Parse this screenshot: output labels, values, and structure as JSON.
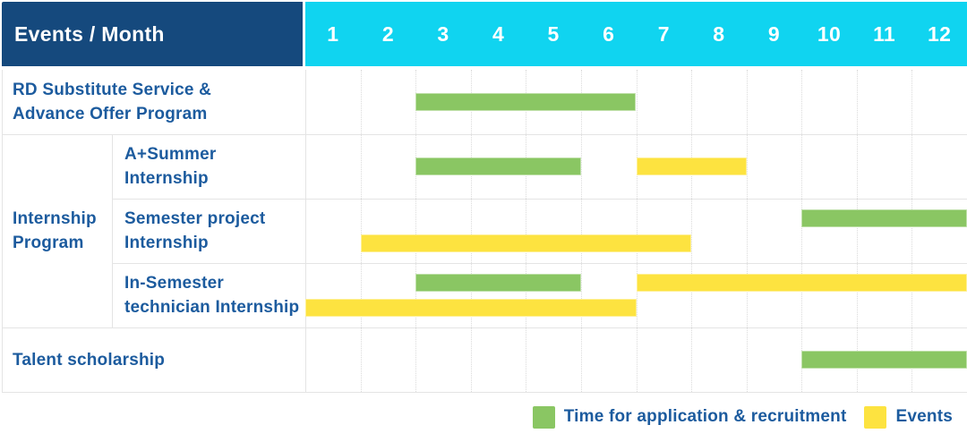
{
  "header": {
    "title": "Events / Month",
    "months": [
      "1",
      "2",
      "3",
      "4",
      "5",
      "6",
      "7",
      "8",
      "9",
      "10",
      "11",
      "12"
    ]
  },
  "colors": {
    "header_bg": "#15497D",
    "months_bg": "#10D4F0",
    "label_text": "#1C5B9E",
    "bar_green": "#8AC663",
    "bar_yellow": "#FDE340",
    "gridline": "#DBDBDB",
    "row_border": "#E4E4E4"
  },
  "legend": {
    "green_label": "Time for application & recruitment",
    "yellow_label": "Events"
  },
  "chart_data": {
    "type": "gantt",
    "title": "Events / Month",
    "x_axis": {
      "label": "Month",
      "ticks": [
        1,
        2,
        3,
        4,
        5,
        6,
        7,
        8,
        9,
        10,
        11,
        12
      ]
    },
    "series_legend": {
      "application": "Time for application & recruitment",
      "events": "Events"
    },
    "group_label_lines": [
      "Internship",
      "Program"
    ],
    "rows": [
      {
        "id": "rd-substitute-service",
        "label_lines": [
          "RD Substitute Service &",
          "Advance Offer Program"
        ],
        "group": null,
        "bars": [
          {
            "series": "application",
            "start_month": 3,
            "end_month": 6,
            "line": 0
          }
        ]
      },
      {
        "id": "a-plus-summer-internship",
        "label_lines": [
          "A+Summer",
          "Internship"
        ],
        "group": "Internship Program",
        "bars": [
          {
            "series": "application",
            "start_month": 3,
            "end_month": 5,
            "line": 0
          },
          {
            "series": "events",
            "start_month": 7,
            "end_month": 8,
            "line": 0
          }
        ]
      },
      {
        "id": "semester-project-internship",
        "label_lines": [
          "Semester project",
          "Internship"
        ],
        "group": "Internship Program",
        "bars": [
          {
            "series": "application",
            "start_month": 10,
            "end_month": 12,
            "line": 0
          },
          {
            "series": "events",
            "start_month": 2,
            "end_month": 7,
            "line": 1
          }
        ]
      },
      {
        "id": "in-semester-technician-internship",
        "label_lines": [
          "In-Semester",
          "technician Internship"
        ],
        "group": "Internship Program",
        "bars": [
          {
            "series": "application",
            "start_month": 3,
            "end_month": 5,
            "line": 0
          },
          {
            "series": "events",
            "start_month": 7,
            "end_month": 12,
            "line": 0
          },
          {
            "series": "events",
            "start_month": 1,
            "end_month": 6,
            "line": 1
          }
        ]
      },
      {
        "id": "talent-scholarship",
        "label_lines": [
          "Talent scholarship"
        ],
        "group": null,
        "bars": [
          {
            "series": "application",
            "start_month": 10,
            "end_month": 12,
            "line": 0
          }
        ]
      }
    ]
  }
}
